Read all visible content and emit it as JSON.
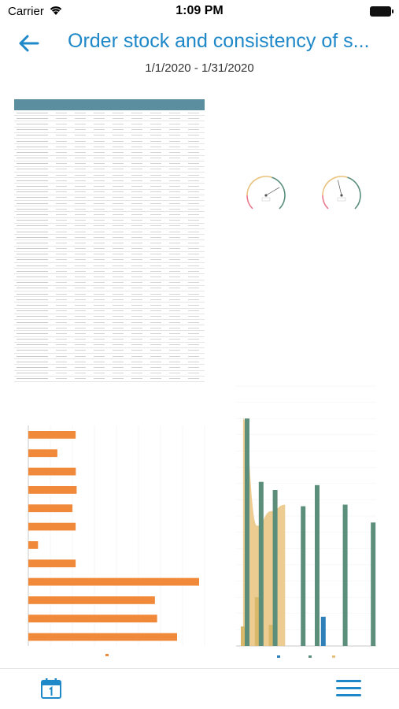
{
  "status_bar": {
    "carrier": "Carrier",
    "time": "1:09 PM"
  },
  "header": {
    "title": "Order stock and consistency of s...",
    "date_range": "1/1/2020 - 1/31/2020"
  },
  "icons": {
    "back": "arrow-left-icon",
    "calendar": "calendar-icon",
    "menu": "hamburger-menu-icon",
    "wifi": "wifi-icon",
    "battery": "battery-icon"
  },
  "colors": {
    "accent": "#1e88c8",
    "bar_orange": "#f0893a",
    "bar_teal": "#5b8f7c",
    "bar_blue": "#2f7fb8",
    "area_tan": "#e9c37d",
    "table_header": "#5b8fa0"
  },
  "table": {
    "row_count": 48
  },
  "bar_chart": {
    "type": "bar",
    "orientation": "horizontal",
    "values": [
      85.9,
      52.7,
      86.2,
      87.7,
      80.1,
      85.9,
      17.6,
      85.9,
      310.0,
      229.8,
      233.8,
      270.0
    ]
  },
  "combo_chart": {
    "type": "bar",
    "teal_values": [
      14.0,
      10.1,
      9.6,
      0,
      8.6,
      9.9,
      0,
      8.7,
      0,
      7.6
    ],
    "blue_values": [
      0,
      0,
      0,
      0,
      0,
      0,
      1.8,
      0,
      0,
      0
    ],
    "gold_values": [
      1.2,
      3.0,
      1.3,
      0,
      0,
      0,
      0,
      0,
      0,
      0
    ],
    "area_values": [
      14.0,
      7.4,
      8.3,
      8.7
    ],
    "ymax": 16
  },
  "gauges": [
    {
      "value": 0.72
    },
    {
      "value": 0.45
    }
  ]
}
